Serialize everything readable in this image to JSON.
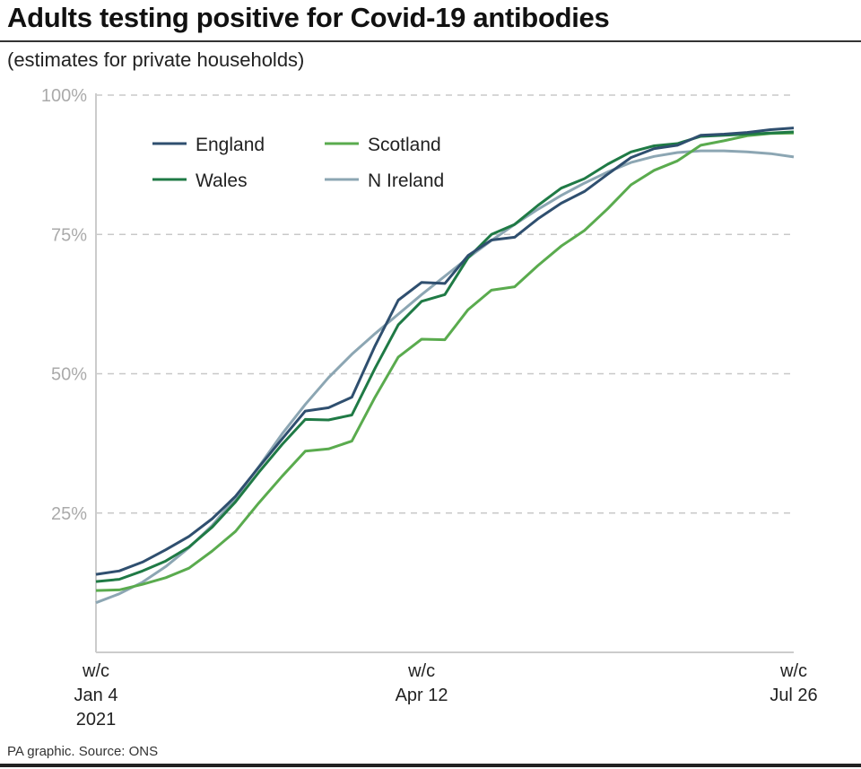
{
  "title": "Adults testing positive for Covid-19 antibodies",
  "subtitle": "(estimates for private households)",
  "footer": "PA graphic. Source: ONS",
  "colors": {
    "England": "#2f4f6f",
    "Wales": "#1f7a45",
    "Scotland": "#5aab4e",
    "N Ireland": "#8ca6b3",
    "grid": "#c8c8c8",
    "axis": "#cccccc"
  },
  "chart_data": {
    "type": "line",
    "title": "Adults testing positive for Covid-19 antibodies",
    "subtitle": "(estimates for private households)",
    "xlabel": "",
    "ylabel": "",
    "ylim": [
      0,
      100
    ],
    "yticks": [
      {
        "value": 25,
        "label": "25%"
      },
      {
        "value": 50,
        "label": "50%"
      },
      {
        "value": 75,
        "label": "75%"
      },
      {
        "value": 100,
        "label": "100%"
      }
    ],
    "xticks": [
      {
        "index": 0,
        "lines": [
          "w/c",
          "Jan 4",
          "2021"
        ]
      },
      {
        "index": 14,
        "lines": [
          "w/c",
          "Apr 12"
        ]
      },
      {
        "index": 30,
        "lines": [
          "w/c",
          "Jul 26"
        ]
      }
    ],
    "grid": true,
    "legend_position": "top-left",
    "x_count": 31,
    "series": [
      {
        "name": "England",
        "values": [
          14.0,
          14.6,
          16.2,
          18.4,
          20.8,
          24.0,
          28.0,
          33.2,
          38.3,
          43.3,
          43.9,
          45.8,
          55.0,
          63.2,
          66.4,
          66.2,
          71.2,
          74.0,
          74.5,
          77.8,
          80.6,
          82.7,
          85.8,
          88.8,
          90.4,
          91.0,
          92.8,
          93.0,
          93.3,
          93.8,
          94.1
        ]
      },
      {
        "name": "Wales",
        "values": [
          12.7,
          13.1,
          14.6,
          16.4,
          18.9,
          22.5,
          27.0,
          32.3,
          37.3,
          41.8,
          41.7,
          42.6,
          51.0,
          58.8,
          63.0,
          64.2,
          70.8,
          75.0,
          76.8,
          80.2,
          83.3,
          85.0,
          87.6,
          89.8,
          90.9,
          91.3,
          92.6,
          92.8,
          93.0,
          93.2,
          93.4
        ]
      },
      {
        "name": "Scotland",
        "values": [
          11.1,
          11.2,
          12.2,
          13.4,
          15.1,
          18.2,
          21.7,
          26.8,
          31.6,
          36.1,
          36.5,
          37.9,
          45.8,
          53.0,
          56.2,
          56.1,
          61.5,
          65.0,
          65.6,
          69.4,
          72.9,
          75.7,
          79.6,
          83.9,
          86.5,
          88.2,
          91.0,
          91.8,
          92.7,
          93.1,
          93.2
        ]
      },
      {
        "name": "N Ireland",
        "values": [
          8.9,
          10.5,
          12.6,
          15.4,
          18.8,
          22.8,
          27.7,
          33.3,
          39.2,
          44.5,
          49.3,
          53.5,
          57.2,
          60.7,
          64.2,
          67.5,
          70.8,
          73.9,
          76.8,
          79.5,
          82.0,
          84.2,
          86.2,
          87.9,
          89.0,
          89.7,
          90.0,
          90.0,
          89.8,
          89.5,
          88.9
        ]
      }
    ]
  }
}
